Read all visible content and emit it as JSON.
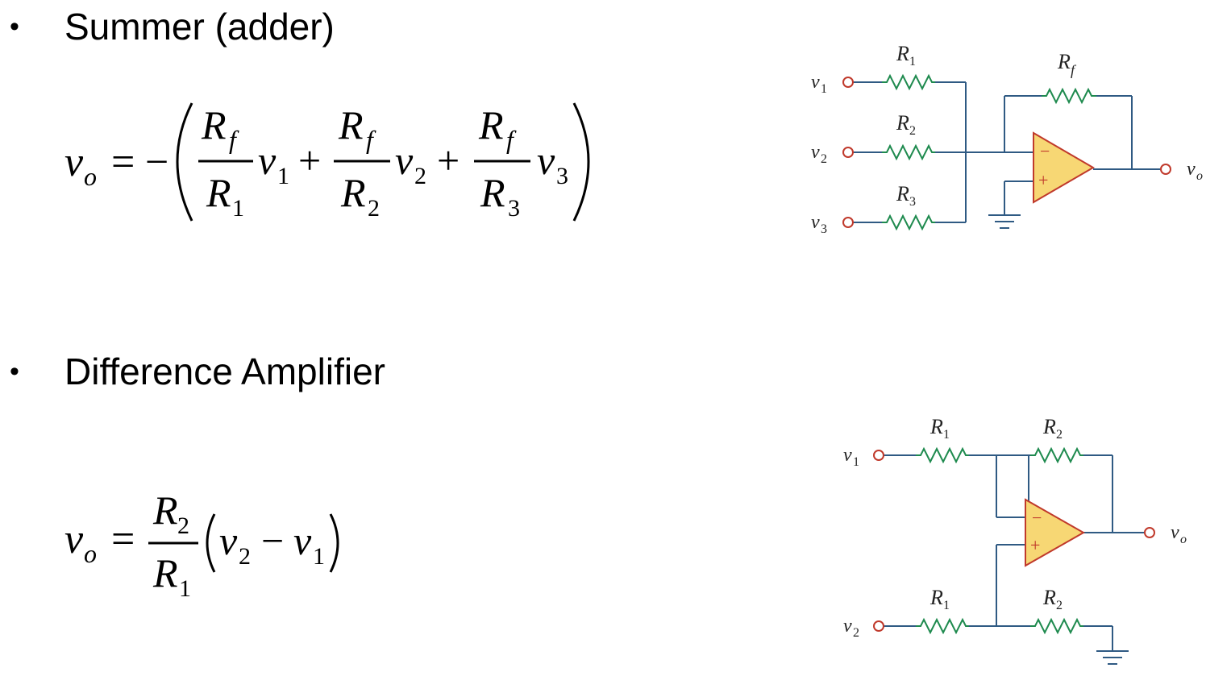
{
  "summer": {
    "bullet": "•",
    "heading": "Summer (adder)",
    "equation": {
      "lhs": "v",
      "lhs_sub": "o",
      "equals": "=",
      "minus": "−",
      "terms": [
        {
          "num": "R",
          "num_sub": "f",
          "den": "R",
          "den_sub": "1",
          "var": "v",
          "var_sub": "1"
        },
        {
          "num": "R",
          "num_sub": "f",
          "den": "R",
          "den_sub": "2",
          "var": "v",
          "var_sub": "2"
        },
        {
          "num": "R",
          "num_sub": "f",
          "den": "R",
          "den_sub": "3",
          "var": "v",
          "var_sub": "3"
        }
      ],
      "plus": "+"
    },
    "circuit": {
      "inputs": [
        {
          "label": "v",
          "sub": "1",
          "resistor": "R",
          "resistor_sub": "1"
        },
        {
          "label": "v",
          "sub": "2",
          "resistor": "R",
          "resistor_sub": "2"
        },
        {
          "label": "v",
          "sub": "3",
          "resistor": "R",
          "resistor_sub": "3"
        }
      ],
      "feedback": {
        "label": "R",
        "sub": "f"
      },
      "output": {
        "label": "v",
        "sub": "o"
      },
      "opamp_minus": "−",
      "opamp_plus": "+"
    }
  },
  "difference": {
    "bullet": "•",
    "heading": "Difference Amplifier",
    "equation": {
      "lhs": "v",
      "lhs_sub": "o",
      "equals": "=",
      "num": "R",
      "num_sub": "2",
      "den": "R",
      "den_sub": "1",
      "a": "v",
      "a_sub": "2",
      "minus": "−",
      "b": "v",
      "b_sub": "1"
    },
    "circuit": {
      "in1": {
        "label": "v",
        "sub": "1"
      },
      "in2": {
        "label": "v",
        "sub": "2"
      },
      "r_top_in": {
        "label": "R",
        "sub": "1"
      },
      "r_top_fb": {
        "label": "R",
        "sub": "2"
      },
      "r_bot_in": {
        "label": "R",
        "sub": "1"
      },
      "r_bot_gnd": {
        "label": "R",
        "sub": "2"
      },
      "output": {
        "label": "v",
        "sub": "o"
      },
      "opamp_minus": "−",
      "opamp_plus": "+"
    }
  },
  "colors": {
    "wire": "#2f5a83",
    "resistor": "#1e8a4e",
    "terminal": "#c0392b",
    "opamp_fill": "#f7d774",
    "opamp_stroke": "#c0392b"
  }
}
